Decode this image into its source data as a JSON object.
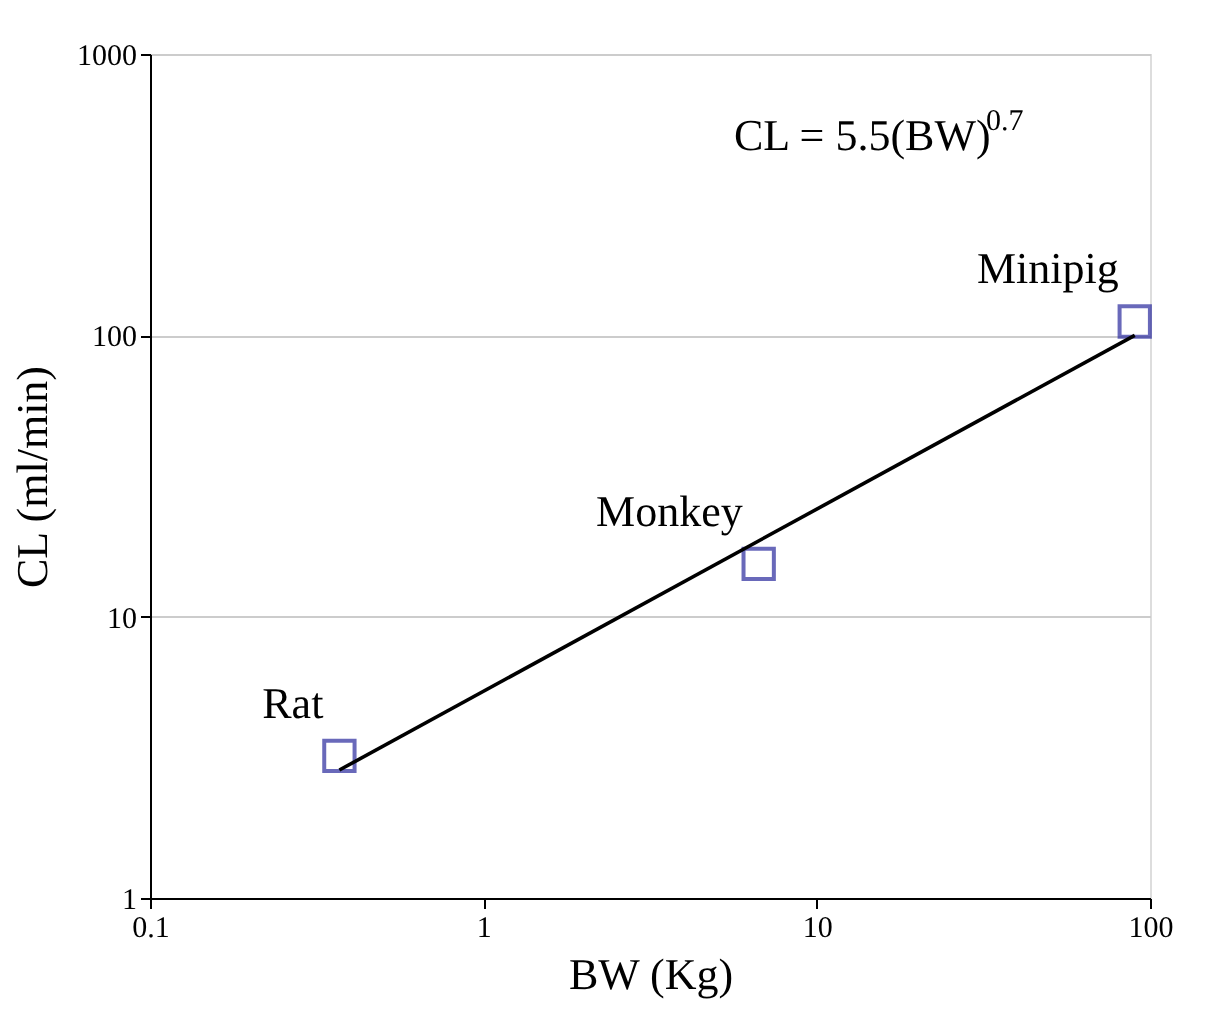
{
  "chart_data": {
    "type": "scatter",
    "xlabel": "BW (Kg)",
    "ylabel": "CL (ml/min)",
    "log": "xy",
    "grid": "y",
    "marker": "square",
    "xlim": [
      0.1,
      100
    ],
    "xticks": [
      0.1,
      1,
      10,
      100
    ],
    "ylim": [
      1,
      1000
    ],
    "yticks": [
      1,
      10,
      100,
      1000
    ],
    "series": [
      {
        "type": "scatter",
        "color": "#2b2b9e",
        "x": [
          0.37,
          6.7,
          90
        ],
        "values": [
          3.2,
          15.4,
          112
        ]
      },
      {
        "type": "line",
        "color": "#000000",
        "x": [
          0.37,
          90
        ],
        "values": [
          2.85,
          100
        ],
        "marker": "none"
      }
    ],
    "annotations": [
      "CL = 5.5(BW)$^{0.7}$",
      {
        "text": "Rat",
        "x": 0.37,
        "y": 3.2
      },
      {
        "text": "Monkey",
        "x": 6.7,
        "y": 15.4
      },
      {
        "text": "Minipig",
        "x": 90,
        "y": 112
      }
    ]
  }
}
